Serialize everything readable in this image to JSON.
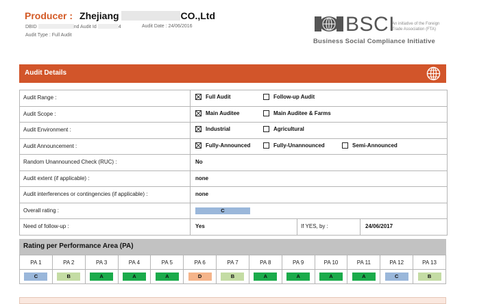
{
  "header": {
    "producer_label": "Producer :",
    "producer_name": "Zhejiang",
    "producer_suffix": "CO.,Ltd",
    "dbid_label": "DBID",
    "audit_id_label": "nd Audit Id",
    "audit_id_tail": "4",
    "audit_date": "Audit Date : 24/06/2016",
    "audit_type": "Audit Type : Full Audit"
  },
  "logo": {
    "name": "BSCI",
    "note": "An initiative of the Foreign Trade Association (FTA)",
    "tagline": "Business Social Compliance Initiative",
    "icon": "bsci-handshake-logo"
  },
  "audit_details": {
    "title": "Audit Details",
    "icon": "globe-icon",
    "rows": [
      {
        "label": "Audit Range :",
        "options": [
          {
            "text": "Full Audit",
            "checked": true
          },
          {
            "text": "Follow-up Audit",
            "checked": false
          }
        ]
      },
      {
        "label": "Audit Scope :",
        "options": [
          {
            "text": "Main Auditee",
            "checked": true
          },
          {
            "text": "Main Auditee & Farms",
            "checked": false
          }
        ]
      },
      {
        "label": "Audit Environment :",
        "options": [
          {
            "text": "Industrial",
            "checked": true
          },
          {
            "text": "Agricultural",
            "checked": false
          }
        ]
      },
      {
        "label": "Audit Announcement :",
        "options": [
          {
            "text": "Fully-Announced",
            "checked": true
          },
          {
            "text": "Fully-Unannounced",
            "checked": false
          },
          {
            "text": "Semi-Announced",
            "checked": false
          }
        ]
      },
      {
        "label": "Random Unannounced Check (RUC) :",
        "value": "No"
      },
      {
        "label": "Audit extent (if applicable) :",
        "value": "none"
      },
      {
        "label": "Audit interferences or contingencies (if applicable) :",
        "value": "none"
      },
      {
        "label": "Overall rating :",
        "rating": "C"
      },
      {
        "label": "Need of follow-up :",
        "value": "Yes",
        "if_yes_label": "If YES, by :",
        "followup_date": "24/06/2017"
      }
    ]
  },
  "performance": {
    "title": "Rating per Performance Area (PA)",
    "areas": [
      "PA 1",
      "PA 2",
      "PA 3",
      "PA 4",
      "PA 5",
      "PA 6",
      "PA 7",
      "PA 8",
      "PA 9",
      "PA 10",
      "PA 11",
      "PA 12",
      "PA 13"
    ],
    "grades": [
      "C",
      "B",
      "A",
      "A",
      "A",
      "D",
      "B",
      "A",
      "A",
      "A",
      "A",
      "C",
      "B"
    ]
  },
  "grade_colors": {
    "A": "#1bab4b",
    "B": "#c4dca4",
    "C": "#9ab7da",
    "D": "#f5b48a"
  }
}
